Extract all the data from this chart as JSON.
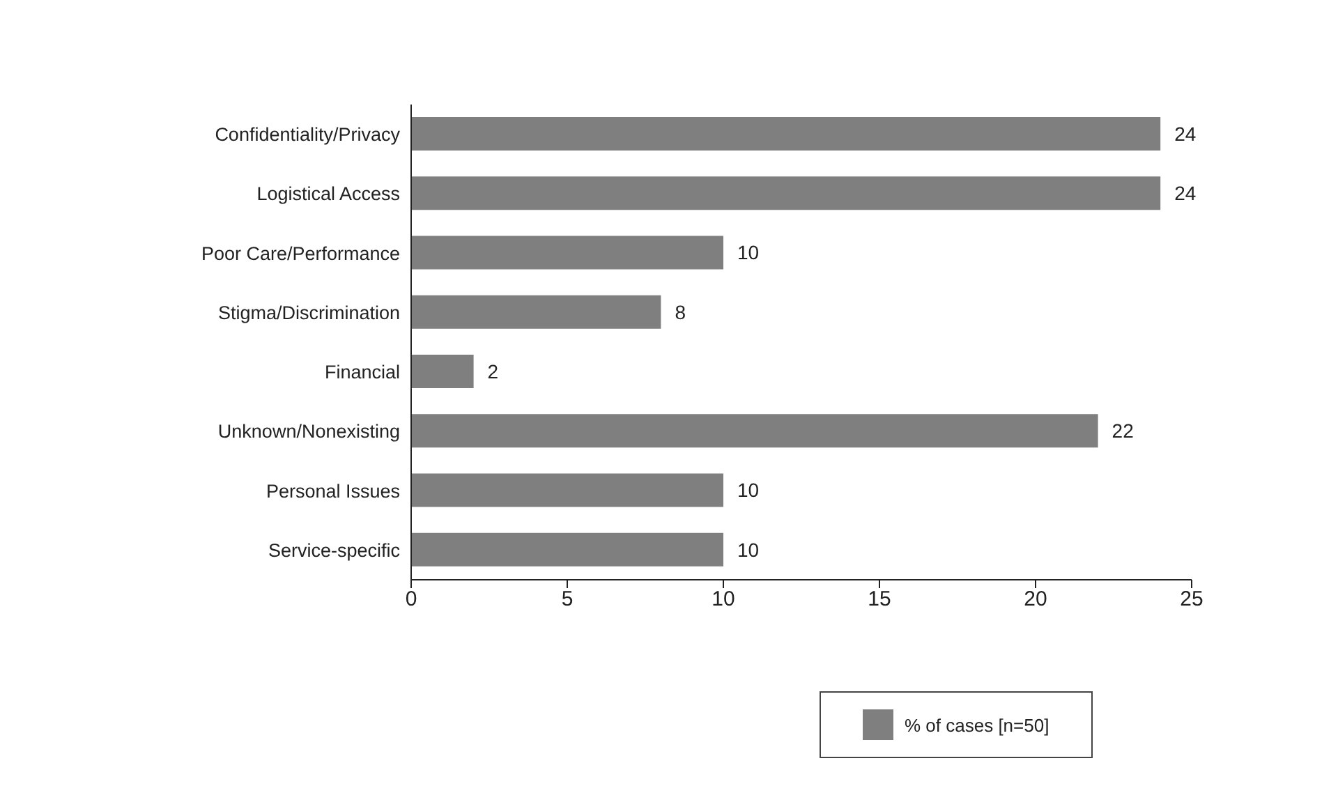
{
  "chart_data": {
    "type": "bar",
    "orientation": "horizontal",
    "categories": [
      "Confidentiality/Privacy",
      "Logistical Access",
      "Poor Care/Performance",
      "Stigma/Discrimination",
      "Financial",
      "Unknown/Nonexisting",
      "Personal Issues",
      "Service-specific"
    ],
    "series": [
      {
        "name": "% of cases [n=50]",
        "color": "#7f7f7f",
        "values": [
          24,
          24,
          10,
          8,
          2,
          22,
          10,
          10
        ]
      }
    ],
    "xlim": [
      0,
      25
    ],
    "xticks": [
      0,
      5,
      10,
      15,
      20,
      25
    ],
    "data_labels": true,
    "legend": "bottom",
    "grid": false
  }
}
